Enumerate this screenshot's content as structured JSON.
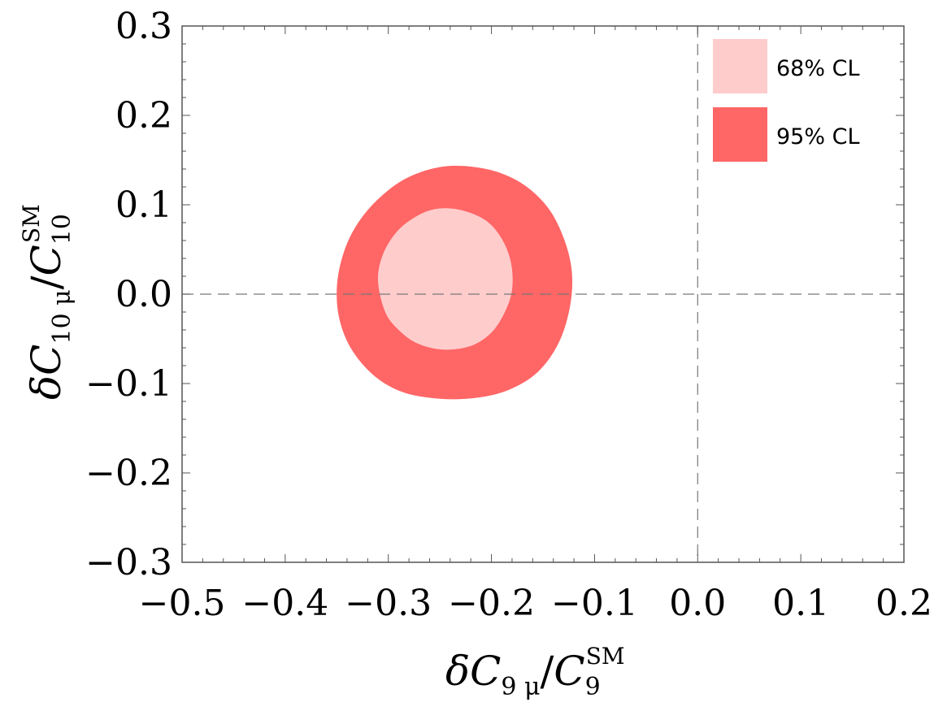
{
  "chart_data": {
    "type": "contour",
    "xlim": [
      -0.5,
      0.2
    ],
    "ylim": [
      -0.3,
      0.3
    ],
    "xticks": [
      -0.5,
      -0.4,
      -0.3,
      -0.2,
      -0.1,
      0.0,
      0.1,
      0.2
    ],
    "yticks": [
      -0.3,
      -0.2,
      -0.1,
      0.0,
      0.1,
      0.2,
      0.3
    ],
    "xtick_labels": [
      "−0.5",
      "−0.4",
      "−0.3",
      "−0.2",
      "−0.1",
      "0.0",
      "0.1",
      "0.2"
    ],
    "ytick_labels": [
      "−0.3",
      "−0.2",
      "−0.1",
      "0.0",
      "0.1",
      "0.2",
      "0.3"
    ],
    "xlabel": {
      "delta": "δ",
      "C": "C",
      "sub": "9 μ",
      "slash": "/",
      "C2": "C",
      "sub2": "9",
      "sup2": "SM"
    },
    "ylabel": {
      "delta": "δ",
      "C": "C",
      "sub": "10 μ",
      "slash": "/",
      "C2": "C",
      "sub2": "10",
      "sup2": "SM"
    },
    "reference_lines": {
      "x": 0.0,
      "y": 0.0,
      "style": "dashed"
    },
    "legend": {
      "position": "top-right"
    },
    "series": [
      {
        "name": "95% CL",
        "color": "#ff6666",
        "contour": [
          [
            -0.35,
            0.005
          ],
          [
            -0.345,
            0.04
          ],
          [
            -0.333,
            0.073
          ],
          [
            -0.312,
            0.104
          ],
          [
            -0.282,
            0.13
          ],
          [
            -0.245,
            0.143
          ],
          [
            -0.205,
            0.14
          ],
          [
            -0.172,
            0.125
          ],
          [
            -0.146,
            0.098
          ],
          [
            -0.13,
            0.063
          ],
          [
            -0.122,
            0.025
          ],
          [
            -0.124,
            -0.015
          ],
          [
            -0.135,
            -0.055
          ],
          [
            -0.155,
            -0.087
          ],
          [
            -0.183,
            -0.107
          ],
          [
            -0.215,
            -0.116
          ],
          [
            -0.25,
            -0.117
          ],
          [
            -0.285,
            -0.11
          ],
          [
            -0.313,
            -0.092
          ],
          [
            -0.335,
            -0.063
          ],
          [
            -0.347,
            -0.03
          ]
        ]
      },
      {
        "name": "68% CL",
        "color": "#ffcccc",
        "contour": [
          [
            -0.31,
            0.015
          ],
          [
            -0.305,
            0.045
          ],
          [
            -0.29,
            0.072
          ],
          [
            -0.268,
            0.09
          ],
          [
            -0.248,
            0.096
          ],
          [
            -0.226,
            0.093
          ],
          [
            -0.205,
            0.082
          ],
          [
            -0.19,
            0.062
          ],
          [
            -0.181,
            0.035
          ],
          [
            -0.18,
            0.005
          ],
          [
            -0.187,
            -0.02
          ],
          [
            -0.2,
            -0.043
          ],
          [
            -0.22,
            -0.058
          ],
          [
            -0.247,
            -0.062
          ],
          [
            -0.272,
            -0.055
          ],
          [
            -0.29,
            -0.04
          ],
          [
            -0.303,
            -0.02
          ]
        ]
      }
    ]
  }
}
